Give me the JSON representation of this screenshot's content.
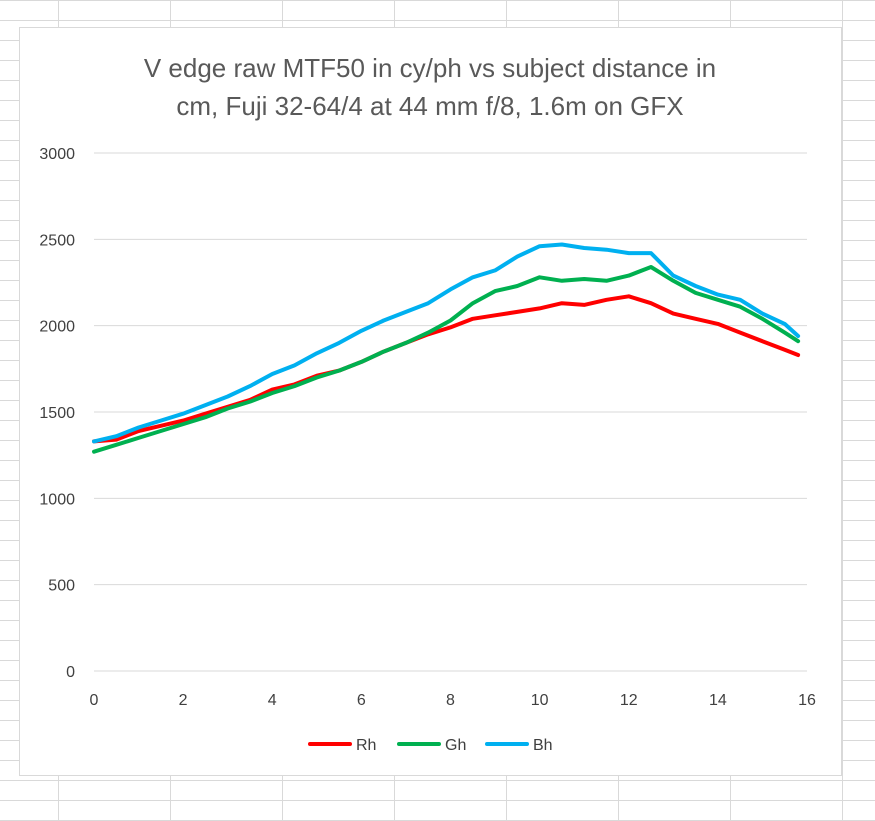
{
  "chart_data": {
    "type": "line",
    "title_lines": [
      "V edge raw MTF50 in cy/ph vs subject distance in",
      "cm, Fuji 32-64/4 at 44 mm f/8, 1.6m on GFX"
    ],
    "xlabel": "",
    "ylabel": "",
    "xlim": [
      0,
      16
    ],
    "ylim": [
      0,
      3000
    ],
    "xticks": [
      "0",
      "2",
      "4",
      "6",
      "8",
      "10",
      "12",
      "14",
      "16"
    ],
    "yticks": [
      "0",
      "500",
      "1000",
      "1500",
      "2000",
      "2500",
      "3000"
    ],
    "grid": "horizontal",
    "legend_position": "bottom",
    "x": [
      0.0,
      0.5,
      1.0,
      1.5,
      2.0,
      2.5,
      3.0,
      3.5,
      4.0,
      4.5,
      5.0,
      5.5,
      6.0,
      6.5,
      7.0,
      7.5,
      8.0,
      8.5,
      9.0,
      9.5,
      10.0,
      10.5,
      11.0,
      11.5,
      12.0,
      12.5,
      13.0,
      13.5,
      14.0,
      14.5,
      15.0,
      15.5,
      15.8
    ],
    "series": [
      {
        "name": "Rh",
        "color": "#ff0000",
        "values": [
          1330,
          1340,
          1390,
          1420,
          1450,
          1490,
          1530,
          1570,
          1630,
          1660,
          1710,
          1740,
          1790,
          1850,
          1900,
          1950,
          1990,
          2040,
          2060,
          2080,
          2100,
          2130,
          2120,
          2150,
          2170,
          2130,
          2070,
          2040,
          2010,
          1960,
          1910,
          1860,
          1830
        ]
      },
      {
        "name": "Gh",
        "color": "#00b050",
        "values": [
          1270,
          1310,
          1350,
          1390,
          1430,
          1470,
          1520,
          1560,
          1610,
          1650,
          1700,
          1740,
          1790,
          1850,
          1900,
          1960,
          2030,
          2130,
          2200,
          2230,
          2280,
          2260,
          2270,
          2260,
          2290,
          2340,
          2260,
          2190,
          2150,
          2110,
          2040,
          1960,
          1910
        ]
      },
      {
        "name": "Bh",
        "color": "#00b0f0",
        "values": [
          1330,
          1360,
          1410,
          1450,
          1490,
          1540,
          1590,
          1650,
          1720,
          1770,
          1840,
          1900,
          1970,
          2030,
          2080,
          2130,
          2210,
          2280,
          2320,
          2400,
          2460,
          2470,
          2450,
          2440,
          2420,
          2420,
          2290,
          2230,
          2180,
          2150,
          2070,
          2010,
          1940
        ]
      }
    ]
  }
}
